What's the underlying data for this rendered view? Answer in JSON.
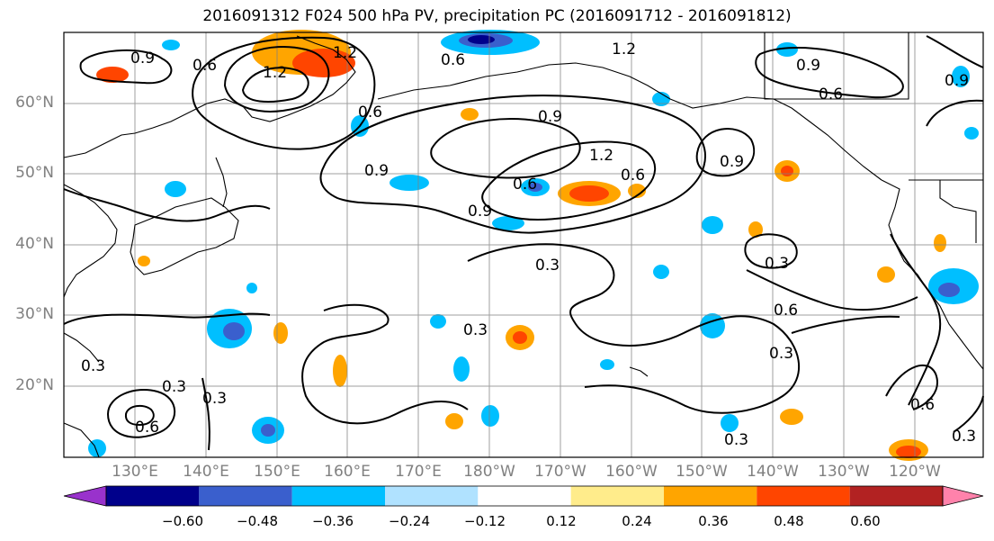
{
  "title": "2016091312 F024 500 hPa PV, precipitation PC (2016091712 - 2016091812)",
  "lat_labels": [
    "60°N",
    "50°N",
    "40°N",
    "30°N",
    "20°N"
  ],
  "lon_labels": [
    "130°E",
    "140°E",
    "150°E",
    "160°E",
    "170°E",
    "180°W",
    "170°W",
    "160°W",
    "150°W",
    "140°W",
    "130°W",
    "120°W"
  ],
  "contour_labels": [
    "0.9",
    "0.6",
    "1.2",
    "1.2",
    "0.6",
    "1.2",
    "0.9",
    "0.6",
    "0.9",
    "0.9",
    "0.6",
    "0.6",
    "0.9",
    "1.2",
    "0.9",
    "0.9",
    "0.6",
    "0.3",
    "0.3",
    "0.6",
    "0.3",
    "0.3",
    "0.3",
    "0.3",
    "0.3",
    "0.6",
    "0.3",
    "0.6",
    "0.3"
  ],
  "colorbar": {
    "tick_labels": [
      "−0.60",
      "−0.48",
      "−0.36",
      "−0.24",
      "−0.12",
      "0.12",
      "0.24",
      "0.36",
      "0.48",
      "0.60"
    ],
    "colors": [
      "#9932cc",
      "#00008b",
      "#3a5fcd",
      "#00bfff",
      "#b0e2ff",
      "#ffffff",
      "#ffec8b",
      "#ffa500",
      "#ff4500",
      "#b22222",
      "#ff82ab"
    ]
  },
  "colors": {
    "coast": "#000000",
    "grid": "#808080",
    "contour": "#000000"
  }
}
